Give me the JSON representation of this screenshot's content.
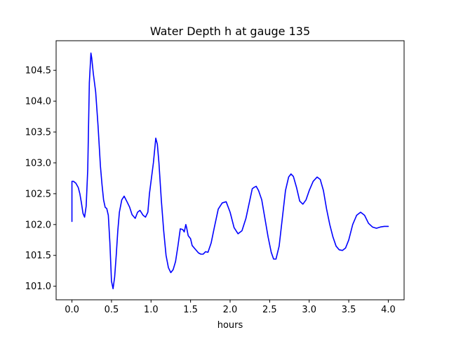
{
  "chart_data": {
    "type": "line",
    "title": "Water Depth h at gauge 135",
    "xlabel": "hours",
    "ylabel": "",
    "xlim": [
      -0.2,
      4.2
    ],
    "ylim": [
      100.78,
      104.98
    ],
    "xticks": [
      0.0,
      0.5,
      1.0,
      1.5,
      2.0,
      2.5,
      3.0,
      3.5,
      4.0
    ],
    "xtick_labels": [
      "0.0",
      "0.5",
      "1.0",
      "1.5",
      "2.0",
      "2.5",
      "3.0",
      "3.5",
      "4.0"
    ],
    "yticks": [
      101.0,
      101.5,
      102.0,
      102.5,
      103.0,
      103.5,
      104.0,
      104.5
    ],
    "ytick_labels": [
      "101.0",
      "101.5",
      "102.0",
      "102.5",
      "103.0",
      "103.5",
      "104.0",
      "104.5"
    ],
    "grid": false,
    "legend": "none",
    "series": [
      {
        "color": "#0000ff",
        "x": [
          0.0,
          0.0,
          0.02,
          0.05,
          0.08,
          0.1,
          0.12,
          0.14,
          0.16,
          0.18,
          0.2,
          0.22,
          0.24,
          0.25,
          0.27,
          0.3,
          0.33,
          0.36,
          0.38,
          0.4,
          0.42,
          0.44,
          0.46,
          0.48,
          0.5,
          0.52,
          0.54,
          0.56,
          0.58,
          0.6,
          0.63,
          0.66,
          0.7,
          0.73,
          0.76,
          0.8,
          0.83,
          0.86,
          0.9,
          0.93,
          0.96,
          0.98,
          1.0,
          1.03,
          1.06,
          1.08,
          1.1,
          1.13,
          1.16,
          1.19,
          1.22,
          1.25,
          1.28,
          1.31,
          1.34,
          1.37,
          1.4,
          1.42,
          1.44,
          1.45,
          1.47,
          1.5,
          1.52,
          1.56,
          1.6,
          1.63,
          1.66,
          1.69,
          1.72,
          1.76,
          1.8,
          1.85,
          1.9,
          1.95,
          2.0,
          2.05,
          2.1,
          2.15,
          2.2,
          2.25,
          2.28,
          2.3,
          2.33,
          2.36,
          2.4,
          2.44,
          2.48,
          2.52,
          2.55,
          2.58,
          2.62,
          2.66,
          2.7,
          2.74,
          2.77,
          2.8,
          2.84,
          2.88,
          2.92,
          2.96,
          3.0,
          3.05,
          3.1,
          3.14,
          3.18,
          3.22,
          3.26,
          3.3,
          3.34,
          3.38,
          3.42,
          3.46,
          3.5,
          3.55,
          3.6,
          3.65,
          3.7,
          3.75,
          3.8,
          3.85,
          3.9,
          3.95,
          4.0
        ],
        "y": [
          102.05,
          102.7,
          102.7,
          102.67,
          102.6,
          102.5,
          102.35,
          102.18,
          102.12,
          102.3,
          102.9,
          104.3,
          104.78,
          104.7,
          104.45,
          104.15,
          103.6,
          102.95,
          102.65,
          102.4,
          102.28,
          102.26,
          102.15,
          101.7,
          101.08,
          100.96,
          101.15,
          101.5,
          101.9,
          102.2,
          102.4,
          102.46,
          102.36,
          102.28,
          102.16,
          102.1,
          102.2,
          102.23,
          102.15,
          102.12,
          102.2,
          102.5,
          102.7,
          103.0,
          103.4,
          103.3,
          103.0,
          102.4,
          101.9,
          101.5,
          101.3,
          101.22,
          101.27,
          101.4,
          101.65,
          101.93,
          101.92,
          101.88,
          102.0,
          101.95,
          101.82,
          101.77,
          101.66,
          101.6,
          101.54,
          101.52,
          101.52,
          101.56,
          101.55,
          101.7,
          101.95,
          102.25,
          102.35,
          102.37,
          102.2,
          101.95,
          101.85,
          101.9,
          102.1,
          102.4,
          102.58,
          102.6,
          102.62,
          102.55,
          102.4,
          102.1,
          101.8,
          101.55,
          101.44,
          101.44,
          101.65,
          102.1,
          102.55,
          102.77,
          102.82,
          102.78,
          102.6,
          102.38,
          102.33,
          102.4,
          102.55,
          102.7,
          102.77,
          102.73,
          102.55,
          102.25,
          102.0,
          101.8,
          101.65,
          101.59,
          101.58,
          101.62,
          101.75,
          102.0,
          102.15,
          102.2,
          102.15,
          102.02,
          101.96,
          101.94,
          101.96,
          101.97,
          101.97
        ]
      }
    ]
  }
}
